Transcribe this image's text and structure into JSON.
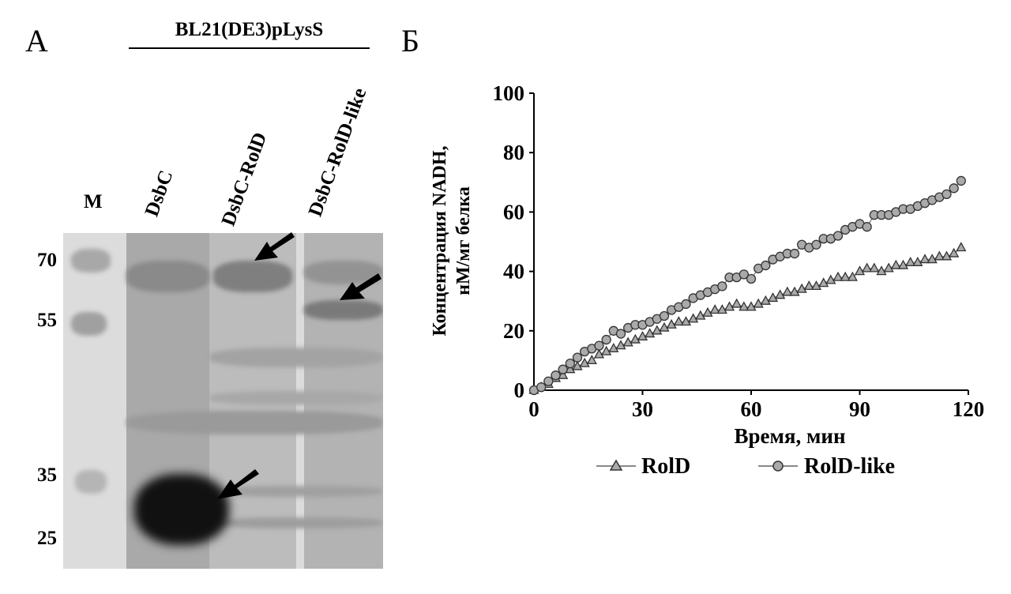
{
  "panel_a": {
    "label": "А",
    "strain": "BL21(DE3)pLysS",
    "lanes": [
      "M",
      "DsbC",
      "DsbC-RolD",
      "DsbC-RolD-like"
    ],
    "mw_markers": [
      "70",
      "55",
      "35",
      "25"
    ]
  },
  "panel_b": {
    "label": "Б"
  },
  "chart_data": {
    "type": "line",
    "xlabel": "Время, мин",
    "ylabel_lines": [
      "Концентрация NADH,",
      "нМ/мг белка"
    ],
    "xlim": [
      0,
      120
    ],
    "ylim": [
      0,
      100
    ],
    "xticks": [
      "0",
      "30",
      "60",
      "90",
      "120"
    ],
    "yticks": [
      "0",
      "20",
      "40",
      "60",
      "80",
      "100"
    ],
    "grid": false,
    "legend": "bottom",
    "x": [
      0,
      2,
      4,
      6,
      8,
      10,
      12,
      14,
      16,
      18,
      20,
      22,
      24,
      26,
      28,
      30,
      32,
      34,
      36,
      38,
      40,
      42,
      44,
      46,
      48,
      50,
      52,
      54,
      56,
      58,
      60,
      62,
      64,
      66,
      68,
      70,
      72,
      74,
      76,
      78,
      80,
      82,
      84,
      86,
      88,
      90,
      92,
      94,
      96,
      98,
      100,
      102,
      104,
      106,
      108,
      110,
      112,
      114,
      116,
      118
    ],
    "series": [
      {
        "name": "RolD",
        "marker": "triangle",
        "color": "#888888",
        "values": [
          0,
          1,
          2,
          4,
          5,
          7,
          8,
          9,
          10,
          12,
          13,
          14,
          15,
          16,
          17,
          18,
          19,
          20,
          21,
          22,
          23,
          23,
          24,
          25,
          26,
          27,
          27,
          28,
          29,
          28,
          28,
          29,
          30,
          31,
          32,
          33,
          33,
          34,
          35,
          35,
          36,
          37,
          38,
          38,
          38,
          40,
          41,
          41,
          40,
          41,
          42,
          42,
          43,
          43,
          44,
          44,
          45,
          45,
          46,
          48
        ]
      },
      {
        "name": "RolD-like",
        "marker": "circle",
        "color": "#888888",
        "values": [
          0,
          1,
          3,
          5,
          7,
          9,
          11,
          13,
          14,
          15,
          17,
          20,
          19,
          21,
          22,
          22,
          23,
          24,
          25,
          27,
          28,
          29,
          31,
          32,
          33,
          34,
          35,
          38,
          38,
          39,
          37.5,
          41,
          42,
          44,
          45,
          46,
          46,
          49,
          48,
          49,
          51,
          51,
          52,
          54,
          55,
          56,
          55,
          59,
          59,
          59,
          60,
          61,
          61,
          62,
          63,
          64,
          65,
          66,
          68,
          70.5
        ]
      }
    ]
  }
}
